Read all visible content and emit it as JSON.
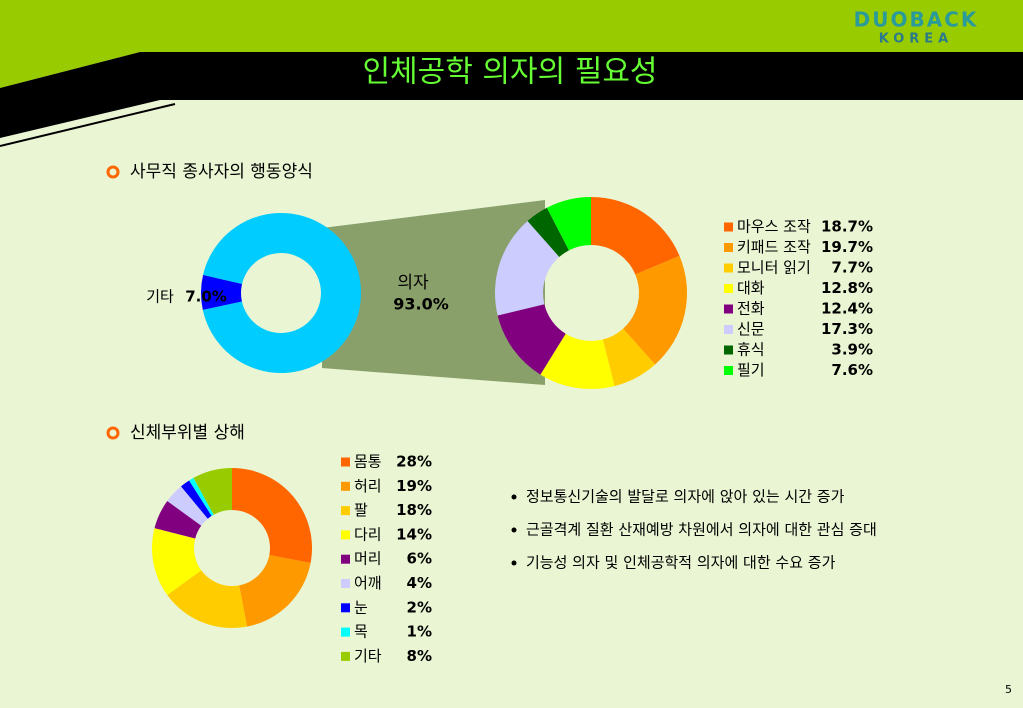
{
  "slide": {
    "title": "인체공학 의자의 필요성",
    "logo": "DUOBACK",
    "logo_sub": "KOREA",
    "page_number": "5",
    "sections": [
      "사무직 종사자의 행동양식",
      "신체부위별 상해"
    ],
    "bullets": [
      "정보통신기술의 발달로 의자에 앉아 있는 시간 증가",
      "근골격계 질환 산재예방 차원에서 의자에 대한 관심 증대",
      "기능성 의자 및 인체공학적 의자에 대한 수요 증가"
    ]
  },
  "chart_data": [
    {
      "type": "donut",
      "categories": [
        "의자",
        "기타"
      ],
      "values": [
        93.0,
        7.0
      ],
      "value_labels": [
        "93.0%",
        "7.0%"
      ],
      "colors": [
        "#00ccff",
        "#0000ff"
      ]
    },
    {
      "type": "donut",
      "categories": [
        "마우스 조작",
        "키패드 조작",
        "모니터 읽기",
        "대화",
        "전화",
        "신문",
        "휴식",
        "필기"
      ],
      "values": [
        18.7,
        19.7,
        7.7,
        12.8,
        12.4,
        17.3,
        3.9,
        7.6
      ],
      "value_labels": [
        "18.7%",
        "19.7%",
        "7.7%",
        "12.8%",
        "12.4%",
        "17.3%",
        "3.9%",
        "7.6%"
      ],
      "colors": [
        "#ff6600",
        "#ff9900",
        "#ffcc00",
        "#ffff00",
        "#800080",
        "#ccccff",
        "#006600",
        "#00ff00"
      ]
    },
    {
      "type": "donut",
      "categories": [
        "몸통",
        "허리",
        "팔",
        "다리",
        "머리",
        "어깨",
        "눈",
        "목",
        "기타"
      ],
      "values": [
        28,
        19,
        18,
        14,
        6,
        4,
        2,
        1,
        8
      ],
      "value_labels": [
        "28%",
        "19%",
        "18%",
        "14%",
        "6%",
        "4%",
        "2%",
        "1%",
        "8%"
      ],
      "colors": [
        "#ff6600",
        "#ff9900",
        "#ffcc00",
        "#ffff00",
        "#800080",
        "#ccccff",
        "#0000ff",
        "#00ffff",
        "#99cc00"
      ]
    }
  ]
}
